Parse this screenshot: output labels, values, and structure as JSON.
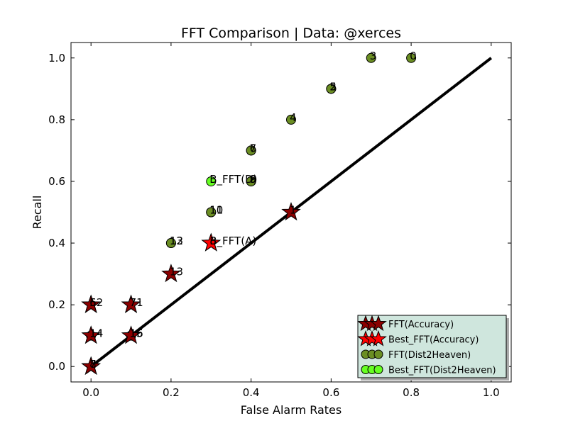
{
  "chart_data": {
    "type": "scatter",
    "title": "FFT Comparison |  Data: @xerces",
    "xlabel": "False Alarm Rates",
    "ylabel": "Recall",
    "xlim": [
      -0.05,
      1.05
    ],
    "ylim": [
      -0.05,
      1.05
    ],
    "xticks": [
      0.0,
      0.2,
      0.4,
      0.6,
      0.8,
      1.0
    ],
    "yticks": [
      0.0,
      0.2,
      0.4,
      0.6,
      0.8,
      1.0
    ],
    "xtick_labels": [
      "0.0",
      "0.2",
      "0.4",
      "0.6",
      "0.8",
      "1.0"
    ],
    "ytick_labels": [
      "0.0",
      "0.2",
      "0.4",
      "0.6",
      "0.8",
      "1.0"
    ],
    "grid": false,
    "legend_position": "lower-right",
    "diagonal_line": {
      "x": [
        0,
        1
      ],
      "y": [
        0,
        1
      ],
      "color": "#000000"
    },
    "series": [
      {
        "name": "FFT(Accuracy)",
        "marker": "star",
        "color": "#8b0000",
        "points": [
          {
            "x": 0.5,
            "y": 0.5,
            "label": "1"
          },
          {
            "x": 0.2,
            "y": 0.3,
            "label": "13"
          },
          {
            "x": 0.0,
            "y": 0.2,
            "label": "52"
          },
          {
            "x": 0.0,
            "y": 0.2,
            "label": "6"
          },
          {
            "x": 0.1,
            "y": 0.2,
            "label": "71"
          },
          {
            "x": 0.1,
            "y": 0.2,
            "label": "7"
          },
          {
            "x": 0.0,
            "y": 0.1,
            "label": "14"
          },
          {
            "x": 0.1,
            "y": 0.1,
            "label": "15"
          },
          {
            "x": 0.0,
            "y": 0.0,
            "label": "8"
          },
          {
            "x": 0.0,
            "y": 0.0,
            "label": "7"
          },
          {
            "x": 0.3,
            "y": 0.4,
            "label": "8"
          }
        ]
      },
      {
        "name": "Best_FFT(Accuracy)",
        "marker": "star",
        "color": "#ff0000",
        "points": [
          {
            "x": 0.3,
            "y": 0.4,
            "label": "B_FFT(A)"
          }
        ]
      },
      {
        "name": "FFT(Dist2Heaven)",
        "marker": "circle",
        "color": "#6b8e23",
        "points": [
          {
            "x": 0.8,
            "y": 1.0,
            "label": "0"
          },
          {
            "x": 0.7,
            "y": 1.0,
            "label": "3"
          },
          {
            "x": 0.6,
            "y": 0.9,
            "label": "5"
          },
          {
            "x": 0.6,
            "y": 0.9,
            "label": "2"
          },
          {
            "x": 0.5,
            "y": 0.8,
            "label": "4"
          },
          {
            "x": 0.4,
            "y": 0.7,
            "label": "7"
          },
          {
            "x": 0.4,
            "y": 0.7,
            "label": "6"
          },
          {
            "x": 0.4,
            "y": 0.6,
            "label": "9"
          },
          {
            "x": 0.4,
            "y": 0.6,
            "label": "8"
          },
          {
            "x": 0.3,
            "y": 0.5,
            "label": "10"
          },
          {
            "x": 0.3,
            "y": 0.5,
            "label": "11"
          },
          {
            "x": 0.2,
            "y": 0.4,
            "label": "12"
          },
          {
            "x": 0.2,
            "y": 0.4,
            "label": "13"
          },
          {
            "x": 0.0,
            "y": 0.1,
            "label": "14"
          },
          {
            "x": 0.1,
            "y": 0.1,
            "label": "15"
          },
          {
            "x": 0.1,
            "y": 0.1,
            "label": "16"
          }
        ]
      },
      {
        "name": "Best_FFT(Dist2Heaven)",
        "marker": "circle",
        "color": "#66ff22",
        "points": [
          {
            "x": 0.3,
            "y": 0.6,
            "label": "B_FFT(D)"
          }
        ]
      }
    ]
  }
}
